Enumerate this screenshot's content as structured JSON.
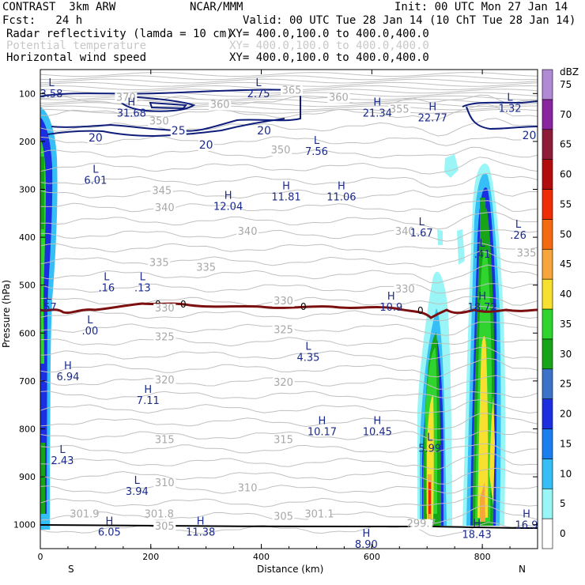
{
  "header": {
    "model": "CONTRAST  3km ARW",
    "org": "NCAR/MMM",
    "init": "Init: 00 UTC Mon 27 Jan 14",
    "fcst": "Fcst:   24 h",
    "valid": "Valid: 00 UTC Tue 28 Jan 14 (10 ChT Tue 28 Jan 14)",
    "fields": [
      {
        "name": "Radar reflectivity (lamda = 10 cm)",
        "xy": "XY= 400.0,100.0 to 400.0,400.0",
        "color": "#000000"
      },
      {
        "name": "Potential temperature",
        "xy": "XY= 400.0,100.0 to 400.0,400.0",
        "color": "#c8c8c8"
      },
      {
        "name": "Horizontal wind speed",
        "xy": "XY= 400.0,100.0 to 400.0,400.0",
        "color": "#000000"
      }
    ]
  },
  "chart_data": {
    "type": "cross-section",
    "xlabel": "Distance (km)",
    "ylabel": "Pressure (hPa)",
    "xlim": [
      0,
      900
    ],
    "ylim": [
      1050,
      50
    ],
    "x_ticks": [
      0,
      200,
      400,
      600,
      800
    ],
    "x_tick_labels": [
      "0",
      "200",
      "400",
      "600",
      "800"
    ],
    "y_ticks": [
      100,
      200,
      300,
      400,
      500,
      600,
      700,
      800,
      900,
      1000
    ],
    "y_tick_labels": [
      "100",
      "200",
      "300",
      "400",
      "500",
      "600",
      "700",
      "800",
      "900",
      "1000"
    ],
    "end_labels": {
      "left": "S",
      "right": "N"
    },
    "colorbar": {
      "unit": "dBZ",
      "levels": [
        "0",
        "5",
        "10",
        "15",
        "20",
        "25",
        "30",
        "35",
        "40",
        "45",
        "50",
        "55",
        "60",
        "65",
        "70",
        "75"
      ],
      "colors": [
        "#ffffff",
        "#9af6f6",
        "#36bff6",
        "#1a7df0",
        "#1c2fe0",
        "#3b73c9",
        "#18a418",
        "#2fd42f",
        "#f8e030",
        "#f6a63c",
        "#f46a10",
        "#ef2c06",
        "#b20d0d",
        "#8e1c38",
        "#8a25a0",
        "#b18ad6"
      ]
    },
    "theta_labels": [
      {
        "text": "370",
        "x": 155,
        "p": 115
      },
      {
        "text": "360",
        "x": 325,
        "p": 130
      },
      {
        "text": "365",
        "x": 455,
        "p": 100
      },
      {
        "text": "360",
        "x": 540,
        "p": 115
      },
      {
        "text": "355",
        "x": 650,
        "p": 140
      },
      {
        "text": "350",
        "x": 215,
        "p": 165
      },
      {
        "text": "350",
        "x": 435,
        "p": 225
      },
      {
        "text": "345",
        "x": 220,
        "p": 310
      },
      {
        "text": "340",
        "x": 225,
        "p": 345
      },
      {
        "text": "340",
        "x": 375,
        "p": 395
      },
      {
        "text": "340",
        "x": 660,
        "p": 395
      },
      {
        "text": "335",
        "x": 215,
        "p": 460
      },
      {
        "text": "335",
        "x": 300,
        "p": 470
      },
      {
        "text": "335",
        "x": 880,
        "p": 440
      },
      {
        "text": "330",
        "x": 225,
        "p": 555
      },
      {
        "text": "330",
        "x": 440,
        "p": 540
      },
      {
        "text": "330",
        "x": 660,
        "p": 515
      },
      {
        "text": "325",
        "x": 225,
        "p": 615
      },
      {
        "text": "325",
        "x": 440,
        "p": 600
      },
      {
        "text": "320",
        "x": 225,
        "p": 705
      },
      {
        "text": "320",
        "x": 440,
        "p": 710
      },
      {
        "text": "315",
        "x": 225,
        "p": 830
      },
      {
        "text": "315",
        "x": 440,
        "p": 830
      },
      {
        "text": "310",
        "x": 225,
        "p": 920
      },
      {
        "text": "310",
        "x": 375,
        "p": 930
      },
      {
        "text": "305",
        "x": 225,
        "p": 1010
      },
      {
        "text": "305",
        "x": 440,
        "p": 990
      },
      {
        "text": "301.9",
        "x": 80,
        "p": 985
      },
      {
        "text": "301.8",
        "x": 215,
        "p": 985
      },
      {
        "text": "301.1",
        "x": 505,
        "p": 985
      },
      {
        "text": "299.7",
        "x": 690,
        "p": 1005
      }
    ],
    "wind_labels": [
      {
        "text": "20",
        "x": 100,
        "p": 200
      },
      {
        "text": "25",
        "x": 250,
        "p": 185
      },
      {
        "text": "20",
        "x": 300,
        "p": 215
      },
      {
        "text": "20",
        "x": 405,
        "p": 185
      },
      {
        "text": "20",
        "x": 885,
        "p": 195
      }
    ],
    "freezing_label": "0",
    "extrema": [
      {
        "kind": "L",
        "value": "3.58",
        "x": 20,
        "p": 85
      },
      {
        "kind": "L",
        "value": "2.75",
        "x": 395,
        "p": 85
      },
      {
        "kind": "H",
        "value": "31.68",
        "x": 165,
        "p": 125
      },
      {
        "kind": "H",
        "value": "21.34",
        "x": 610,
        "p": 125
      },
      {
        "kind": "H",
        "value": "22.77",
        "x": 710,
        "p": 135
      },
      {
        "kind": "L",
        "value": "1.32",
        "x": 850,
        "p": 115
      },
      {
        "kind": "L",
        "value": "7.56",
        "x": 500,
        "p": 205
      },
      {
        "kind": "L",
        "value": "6.01",
        "x": 100,
        "p": 265
      },
      {
        "kind": "H",
        "value": "11.81",
        "x": 445,
        "p": 300
      },
      {
        "kind": "H",
        "value": "11.06",
        "x": 545,
        "p": 300
      },
      {
        "kind": "H",
        "value": "12.04",
        "x": 340,
        "p": 320
      },
      {
        "kind": "L",
        "value": "1.67",
        "x": 690,
        "p": 375
      },
      {
        "kind": "L",
        "value": ".26",
        "x": 865,
        "p": 380
      },
      {
        "kind": "L",
        "value": ".41",
        "x": 800,
        "p": 420
      },
      {
        "kind": "L",
        "value": ".16",
        "x": 120,
        "p": 490
      },
      {
        "kind": "L",
        "value": ".13",
        "x": 185,
        "p": 490
      },
      {
        "kind": "L",
        "value": ".57",
        "x": 15,
        "p": 530
      },
      {
        "kind": "H",
        "value": "10.9",
        "x": 635,
        "p": 530
      },
      {
        "kind": "H",
        "value": "18.72",
        "x": 800,
        "p": 530
      },
      {
        "kind": "L",
        "value": ".00",
        "x": 90,
        "p": 580
      },
      {
        "kind": "L",
        "value": "4.35",
        "x": 485,
        "p": 635
      },
      {
        "kind": "H",
        "value": "6.94",
        "x": 50,
        "p": 675
      },
      {
        "kind": "H",
        "value": "7.11",
        "x": 195,
        "p": 725
      },
      {
        "kind": "H",
        "value": "10.17",
        "x": 510,
        "p": 790
      },
      {
        "kind": "H",
        "value": "10.45",
        "x": 610,
        "p": 790
      },
      {
        "kind": "L",
        "value": "5.99",
        "x": 705,
        "p": 825
      },
      {
        "kind": "L",
        "value": "2.43",
        "x": 40,
        "p": 850
      },
      {
        "kind": "L",
        "value": "3.94",
        "x": 175,
        "p": 915
      },
      {
        "kind": "H",
        "value": "6.05",
        "x": 125,
        "p": 1000
      },
      {
        "kind": "H",
        "value": "11.38",
        "x": 290,
        "p": 1000
      },
      {
        "kind": "H",
        "value": "8.90",
        "x": 590,
        "p": 1025
      },
      {
        "kind": "H",
        "value": "18.43",
        "x": 790,
        "p": 1005
      },
      {
        "kind": "H",
        "value": "16.9",
        "x": 880,
        "p": 985
      }
    ]
  }
}
